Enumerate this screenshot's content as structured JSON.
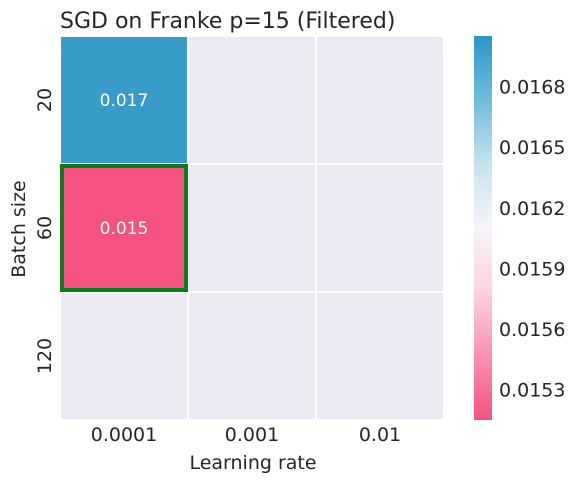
{
  "chart_data": {
    "type": "heatmap",
    "title": "SGD on Franke p=15 (Filtered)",
    "xlabel": "Learning rate",
    "ylabel": "Batch size",
    "x_categories": [
      "0.0001",
      "0.001",
      "0.01"
    ],
    "y_categories": [
      "20",
      "60",
      "120"
    ],
    "values": [
      [
        0.017,
        null,
        null
      ],
      [
        0.015,
        null,
        null
      ],
      [
        null,
        null,
        null
      ]
    ],
    "cell_labels": [
      [
        "0.017",
        "",
        ""
      ],
      [
        "0.015",
        "",
        ""
      ],
      [
        "",
        "",
        ""
      ]
    ],
    "highlighted_cell": {
      "row": 1,
      "col": 0,
      "color": "#0a7d1a"
    },
    "colorbar": {
      "vmin": 0.01515,
      "vmax": 0.01705,
      "ticks": [
        0.0153,
        0.0156,
        0.0159,
        0.0162,
        0.0165,
        0.0168
      ],
      "tick_labels": [
        "0.0153",
        "0.0156",
        "0.0159",
        "0.0162",
        "0.0165",
        "0.0168"
      ],
      "colormap": [
        "#f5527f",
        "#f891b1",
        "#fcd2df",
        "#f7f4f9",
        "#c5e3ef",
        "#70bcdb",
        "#2d96c6"
      ]
    },
    "missing_color": "#eaeaf2",
    "grid_line_color": "#ffffff"
  }
}
